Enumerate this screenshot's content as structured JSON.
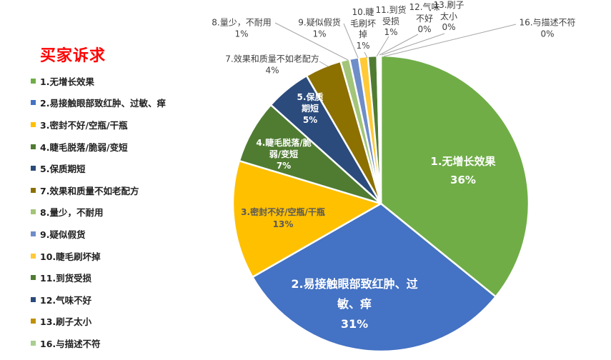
{
  "title": "买家诉求",
  "title_color": "#FF0000",
  "callout_line_color": "#A6A6A6",
  "legend": {
    "position": "left"
  },
  "chart_data": {
    "type": "pie",
    "title": "买家诉求",
    "legend_position": "left",
    "start_angle_deg": 0,
    "direction": "clockwise",
    "unit": "percent",
    "slices": [
      {
        "id": "1",
        "label": "1.无增长效果",
        "value_pct": 36,
        "pct_label": "36%",
        "color": "#70AD47",
        "label_placement": "inside"
      },
      {
        "id": "2",
        "label": "2.易接触眼部致红肿、过敏、痒",
        "value_pct": 31,
        "pct_label": "31%",
        "color": "#4472C4",
        "label_placement": "inside"
      },
      {
        "id": "3",
        "label": "3.密封不好/空瓶/干瓶",
        "value_pct": 13,
        "pct_label": "13%",
        "color": "#FFC000",
        "label_placement": "inside"
      },
      {
        "id": "4",
        "label": "4.睫毛脱落/脆弱/变短",
        "value_pct": 7,
        "pct_label": "7%",
        "color": "#507C32",
        "label_placement": "inside"
      },
      {
        "id": "5",
        "label": "5.保质期短",
        "value_pct": 5,
        "pct_label": "5%",
        "color": "#2B4B7C",
        "label_placement": "inside"
      },
      {
        "id": "7",
        "label": "7.效果和质量不如老配方",
        "value_pct": 4,
        "pct_label": "4%",
        "color": "#8C7000",
        "label_placement": "outside"
      },
      {
        "id": "8",
        "label": "8.量少，不耐用",
        "value_pct": 1,
        "pct_label": "1%",
        "color": "#A2C579",
        "label_placement": "outside"
      },
      {
        "id": "9",
        "label": "9.疑似假货",
        "value_pct": 1,
        "pct_label": "1%",
        "color": "#6E8EC9",
        "label_placement": "outside"
      },
      {
        "id": "10",
        "label": "10.睫毛刷坏掉",
        "value_pct": 1,
        "pct_label": "1%",
        "color": "#FFC937",
        "label_placement": "outside"
      },
      {
        "id": "11",
        "label": "11.到货受损",
        "value_pct": 1,
        "pct_label": "1%",
        "color": "#507C32",
        "label_placement": "outside"
      },
      {
        "id": "12",
        "label": "12.气味不好",
        "value_pct": 0,
        "pct_label": "0%",
        "color": "#2B4B7C",
        "label_placement": "outside"
      },
      {
        "id": "13",
        "label": "13.刷子太小",
        "value_pct": 0,
        "pct_label": "0%",
        "color": "#BF9000",
        "label_placement": "outside"
      },
      {
        "id": "16",
        "label": "16.与描述不符",
        "value_pct": 0,
        "pct_label": "0%",
        "color": "#A9CE90",
        "label_placement": "outside"
      }
    ]
  }
}
